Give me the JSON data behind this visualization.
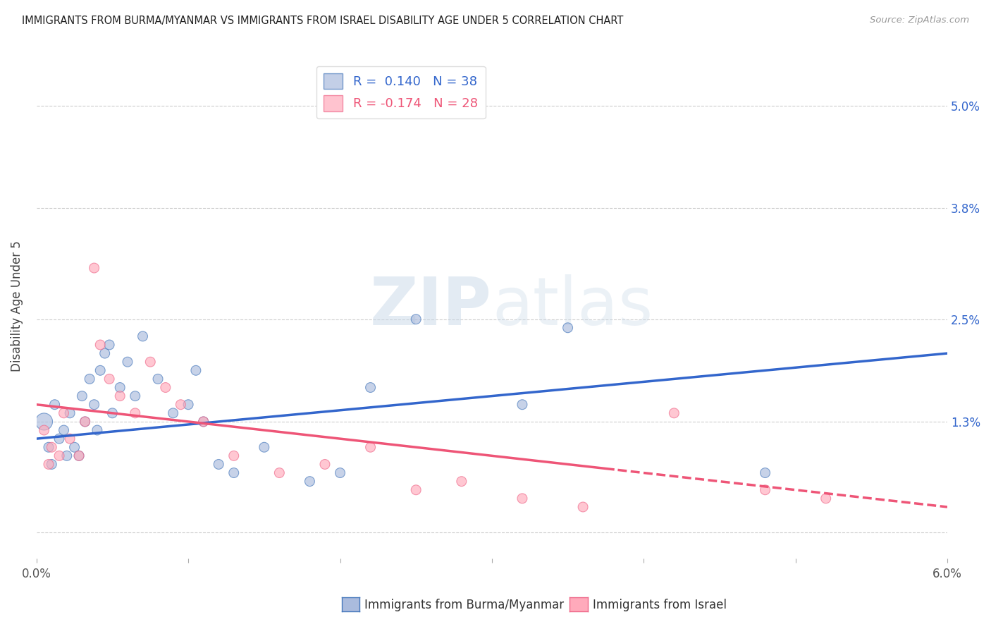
{
  "title": "IMMIGRANTS FROM BURMA/MYANMAR VS IMMIGRANTS FROM ISRAEL DISABILITY AGE UNDER 5 CORRELATION CHART",
  "source": "Source: ZipAtlas.com",
  "ylabel": "Disability Age Under 5",
  "xlim": [
    0.0,
    6.0
  ],
  "ylim": [
    -0.3,
    5.6
  ],
  "ytick_positions": [
    0.0,
    1.3,
    2.5,
    3.8,
    5.0
  ],
  "ytick_labels": [
    "",
    "1.3%",
    "2.5%",
    "3.8%",
    "5.0%"
  ],
  "xtick_positions": [
    0.0,
    1.0,
    2.0,
    3.0,
    4.0,
    5.0,
    6.0
  ],
  "xtick_labels": [
    "0.0%",
    "",
    "",
    "",
    "",
    "",
    "6.0%"
  ],
  "legend_r_blue": "R =  0.140",
  "legend_n_blue": "N = 38",
  "legend_r_pink": "R = -0.174",
  "legend_n_pink": "N = 28",
  "blue_fill": "#AABBDD",
  "pink_fill": "#FFAABB",
  "blue_edge": "#4477BB",
  "pink_edge": "#EE6688",
  "blue_line": "#3366CC",
  "pink_line": "#EE5577",
  "watermark_color": "#C8D8E8",
  "background_color": "#FFFFFF",
  "grid_color": "#CCCCCC",
  "blue_scatter_x": [
    0.05,
    0.08,
    0.1,
    0.12,
    0.15,
    0.18,
    0.2,
    0.22,
    0.25,
    0.28,
    0.3,
    0.32,
    0.35,
    0.38,
    0.4,
    0.42,
    0.45,
    0.48,
    0.5,
    0.55,
    0.6,
    0.65,
    0.7,
    0.8,
    0.9,
    1.0,
    1.05,
    1.1,
    1.2,
    1.3,
    1.5,
    1.8,
    2.0,
    2.2,
    2.5,
    3.2,
    3.5,
    4.8
  ],
  "blue_scatter_y": [
    1.3,
    1.0,
    0.8,
    1.5,
    1.1,
    1.2,
    0.9,
    1.4,
    1.0,
    0.9,
    1.6,
    1.3,
    1.8,
    1.5,
    1.2,
    1.9,
    2.1,
    2.2,
    1.4,
    1.7,
    2.0,
    1.6,
    2.3,
    1.8,
    1.4,
    1.5,
    1.9,
    1.3,
    0.8,
    0.7,
    1.0,
    0.6,
    0.7,
    1.7,
    2.5,
    1.5,
    2.4,
    0.7
  ],
  "blue_sizes": [
    300,
    100,
    100,
    100,
    100,
    100,
    100,
    100,
    100,
    100,
    100,
    100,
    100,
    100,
    100,
    100,
    100,
    100,
    100,
    100,
    100,
    100,
    100,
    100,
    100,
    100,
    100,
    100,
    100,
    100,
    100,
    100,
    100,
    100,
    100,
    100,
    100,
    100
  ],
  "pink_scatter_x": [
    0.05,
    0.08,
    0.1,
    0.15,
    0.18,
    0.22,
    0.28,
    0.32,
    0.38,
    0.42,
    0.48,
    0.55,
    0.65,
    0.75,
    0.85,
    0.95,
    1.1,
    1.3,
    1.6,
    1.9,
    2.2,
    2.5,
    2.8,
    3.2,
    3.6,
    4.2,
    4.8,
    5.2
  ],
  "pink_scatter_y": [
    1.2,
    0.8,
    1.0,
    0.9,
    1.4,
    1.1,
    0.9,
    1.3,
    3.1,
    2.2,
    1.8,
    1.6,
    1.4,
    2.0,
    1.7,
    1.5,
    1.3,
    0.9,
    0.7,
    0.8,
    1.0,
    0.5,
    0.6,
    0.4,
    0.3,
    1.4,
    0.5,
    0.4
  ],
  "pink_sizes": [
    100,
    100,
    100,
    100,
    100,
    100,
    100,
    100,
    100,
    100,
    100,
    100,
    100,
    100,
    100,
    100,
    100,
    100,
    100,
    100,
    100,
    100,
    100,
    100,
    100,
    100,
    100,
    100
  ],
  "blue_line_x0": 0.0,
  "blue_line_x1": 6.0,
  "blue_line_y0": 1.1,
  "blue_line_y1": 2.1,
  "pink_line_x0": 0.0,
  "pink_line_x1": 6.0,
  "pink_line_y0": 1.5,
  "pink_line_y1": 0.3,
  "pink_solid_end": 3.8
}
